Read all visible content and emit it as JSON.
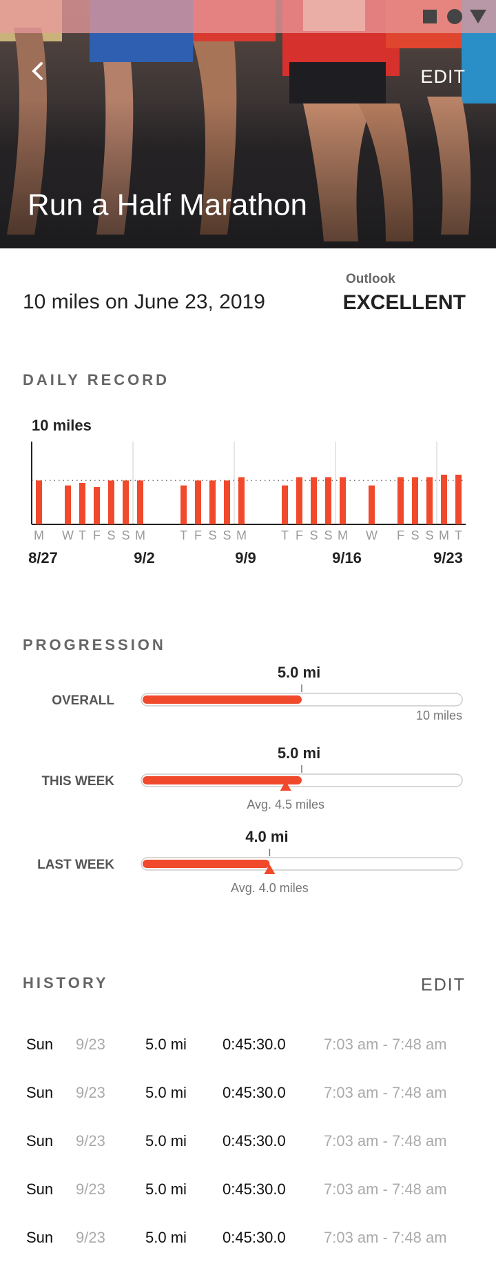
{
  "header": {
    "title": "Run a Half Marathon",
    "action": "EDIT"
  },
  "goal": {
    "text": "10 miles on June 23, 2019",
    "outlook_label": "Outlook",
    "outlook": "EXCELLENT"
  },
  "chart_data": {
    "type": "bar",
    "title": "DAILY RECORD",
    "categories": [
      "M",
      null,
      "W",
      "T",
      "F",
      "S",
      "S",
      "M",
      null,
      null,
      "T",
      "F",
      "S",
      "S",
      "M",
      null,
      null,
      "T",
      "F",
      "S",
      "S",
      "M",
      null,
      "W",
      null,
      "F",
      "S",
      "S",
      "M",
      "T"
    ],
    "dates": [
      "8/27",
      null,
      null,
      null,
      null,
      null,
      null,
      "9/2",
      null,
      null,
      null,
      null,
      null,
      null,
      "9/9",
      null,
      null,
      null,
      null,
      null,
      null,
      "9/16",
      null,
      null,
      null,
      null,
      null,
      null,
      "9/23",
      null
    ],
    "values": [
      5.3,
      null,
      4.7,
      5.0,
      4.5,
      5.3,
      5.3,
      5.3,
      null,
      null,
      4.7,
      5.3,
      5.3,
      5.3,
      5.7,
      null,
      null,
      4.7,
      5.7,
      5.7,
      5.7,
      5.7,
      null,
      4.7,
      null,
      5.7,
      5.7,
      5.7,
      6.0,
      6.0
    ],
    "color": "#f0492b",
    "ylim": [
      0,
      10
    ],
    "yticks": [
      {
        "value": 10,
        "label": "10 miles"
      }
    ],
    "average": 5.3
  },
  "progression": {
    "title": "PROGRESSION",
    "xlim": [
      0,
      10
    ],
    "color": "#f0492b",
    "rows": [
      {
        "label": "OVERALL",
        "value": 5.0,
        "value_label": "5.0 mi",
        "target": 10,
        "target_label": "10 miles"
      },
      {
        "label": "THIS WEEK",
        "value": 5.0,
        "value_label": "5.0 mi",
        "avg": 4.5,
        "avg_label": "Avg. 4.5 miles"
      },
      {
        "label": "LAST WEEK",
        "value": 4.0,
        "value_label": "4.0 mi",
        "avg": 4.0,
        "avg_label": "Avg. 4.0 miles"
      }
    ]
  },
  "history": {
    "title": "HISTORY",
    "action": "EDIT",
    "rows": [
      [
        "Sun",
        "9/23",
        "5.0 mi",
        "0:45:30.0",
        "7:03 am - 7:48 am"
      ],
      [
        "Sun",
        "9/23",
        "5.0 mi",
        "0:45:30.0",
        "7:03 am - 7:48 am"
      ],
      [
        "Sun",
        "9/23",
        "5.0 mi",
        "0:45:30.0",
        "7:03 am - 7:48 am"
      ],
      [
        "Sun",
        "9/23",
        "5.0 mi",
        "0:45:30.0",
        "7:03 am - 7:48 am"
      ],
      [
        "Sun",
        "9/23",
        "5.0 mi",
        "0:45:30.0",
        "7:03 am - 7:48 am"
      ]
    ]
  }
}
